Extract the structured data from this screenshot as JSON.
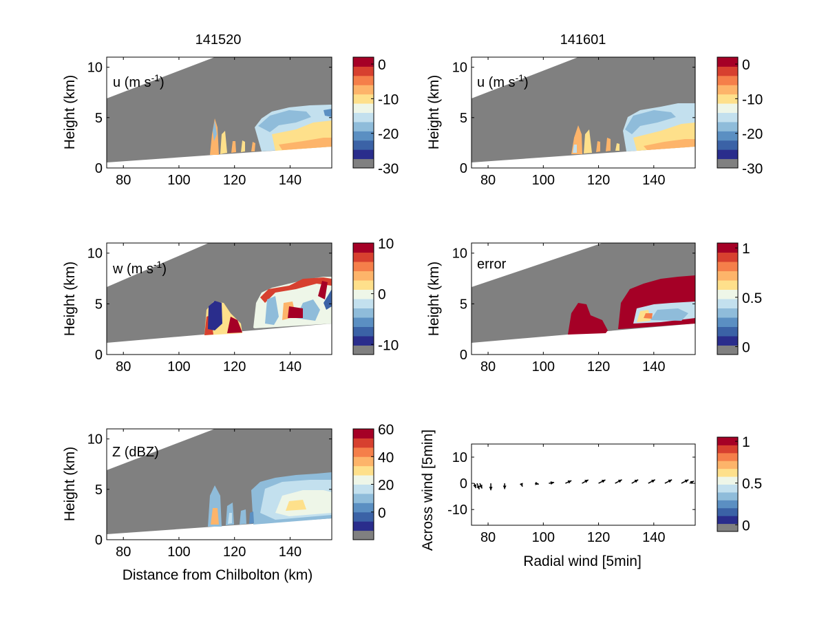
{
  "columns": [
    {
      "title": "141520"
    },
    {
      "title": "141601"
    }
  ],
  "colors": {
    "panel_background": "#808080",
    "colormap": [
      "#808080",
      "#2a2d8c",
      "#3b62a6",
      "#5b8fc2",
      "#8fbcda",
      "#c3e0ee",
      "#eef6e8",
      "#fee08b",
      "#fdb46a",
      "#f57f4a",
      "#d7402f",
      "#a50026"
    ],
    "arrow": "#000000"
  },
  "labels": {
    "height": "Height (km)",
    "distance": "Distance from Chilbolton (km)",
    "across": "Across wind [5min]",
    "radial": "Radial wind [5min]"
  },
  "chart_data": [
    {
      "type": "heatmap",
      "panel": "u-141520",
      "label": "u (m s-1)",
      "xlim": [
        74,
        155
      ],
      "ylim": [
        0,
        11
      ],
      "xticks": [
        80,
        100,
        120,
        140
      ],
      "yticks": [
        0,
        5,
        10
      ],
      "colorbar": {
        "ticks": [
          0,
          -10,
          -20,
          -30
        ],
        "range": [
          -30,
          2
        ]
      },
      "x": [
        110,
        120,
        130,
        140,
        150
      ],
      "values": [
        -15,
        -10,
        -8,
        -8,
        -7
      ]
    },
    {
      "type": "heatmap",
      "panel": "u-141601",
      "label": "u (m s-1)",
      "xlim": [
        74,
        155
      ],
      "ylim": [
        0,
        11
      ],
      "xticks": [
        80,
        100,
        120,
        140
      ],
      "yticks": [
        0,
        5,
        10
      ],
      "colorbar": {
        "ticks": [
          0,
          -10,
          -20,
          -30
        ],
        "range": [
          -30,
          2
        ]
      },
      "x": [
        110,
        120,
        130,
        140,
        150
      ],
      "values": [
        -14,
        -10,
        -8,
        -8,
        -7
      ]
    },
    {
      "type": "heatmap",
      "panel": "w-141520",
      "label": "w (m s-1)",
      "xlim": [
        74,
        155
      ],
      "ylim": [
        0,
        11
      ],
      "xticks": [
        80,
        100,
        120,
        140
      ],
      "yticks": [
        0,
        5,
        10
      ],
      "colorbar": {
        "ticks": [
          10,
          0,
          -10
        ],
        "range": [
          -12,
          10
        ]
      },
      "x": [
        113,
        118,
        130,
        140,
        150
      ],
      "values": [
        -10,
        8,
        2,
        6,
        -4
      ]
    },
    {
      "type": "heatmap",
      "panel": "error-141601",
      "label": "error",
      "xlim": [
        74,
        155
      ],
      "ylim": [
        0,
        11
      ],
      "xticks": [
        80,
        100,
        120,
        140
      ],
      "yticks": [
        0,
        5,
        10
      ],
      "colorbar": {
        "ticks": [
          1,
          0.5,
          0
        ],
        "range": [
          -0.08,
          1.05
        ]
      },
      "x": [
        115,
        130,
        140,
        150
      ],
      "values": [
        1,
        1,
        0.5,
        0.45
      ]
    },
    {
      "type": "heatmap",
      "panel": "Z-141520",
      "label": "Z (dBZ)",
      "xlim": [
        74,
        155
      ],
      "ylim": [
        0,
        11
      ],
      "xticks": [
        80,
        100,
        120,
        140
      ],
      "yticks": [
        0,
        5,
        10
      ],
      "colorbar": {
        "ticks": [
          60,
          40,
          20,
          0
        ],
        "range": [
          -20,
          60
        ]
      },
      "x": [
        113,
        120,
        135,
        145,
        150
      ],
      "values": [
        30,
        10,
        22,
        28,
        20
      ]
    },
    {
      "type": "scatter",
      "panel": "quiver",
      "xlabel": "Radial wind [5min]",
      "ylabel": "Across wind [5min]",
      "xlim": [
        74,
        155
      ],
      "ylim": [
        -16,
        15
      ],
      "xticks": [
        80,
        100,
        120,
        140
      ],
      "yticks": [
        10,
        0,
        -10
      ],
      "colorbar": {
        "ticks": [
          1,
          0.5,
          0
        ],
        "range": [
          -0.08,
          1.05
        ]
      },
      "x": [
        75,
        76,
        77,
        81,
        86,
        92,
        97,
        102,
        108,
        114,
        120,
        126,
        132,
        138,
        144,
        150,
        153
      ],
      "u": [
        1,
        1.5,
        1.5,
        0,
        0,
        0.8,
        2.5,
        3.5,
        4.0,
        4.2,
        4.5,
        4.5,
        4.3,
        4.5,
        4.7,
        4.7,
        2.8
      ],
      "v": [
        -3.2,
        -4.0,
        -3.4,
        -4.6,
        -3.8,
        -2.2,
        -0.6,
        0.6,
        1.8,
        2.3,
        2.3,
        2.4,
        2.4,
        2.4,
        2.4,
        2.4,
        1.5
      ]
    }
  ]
}
